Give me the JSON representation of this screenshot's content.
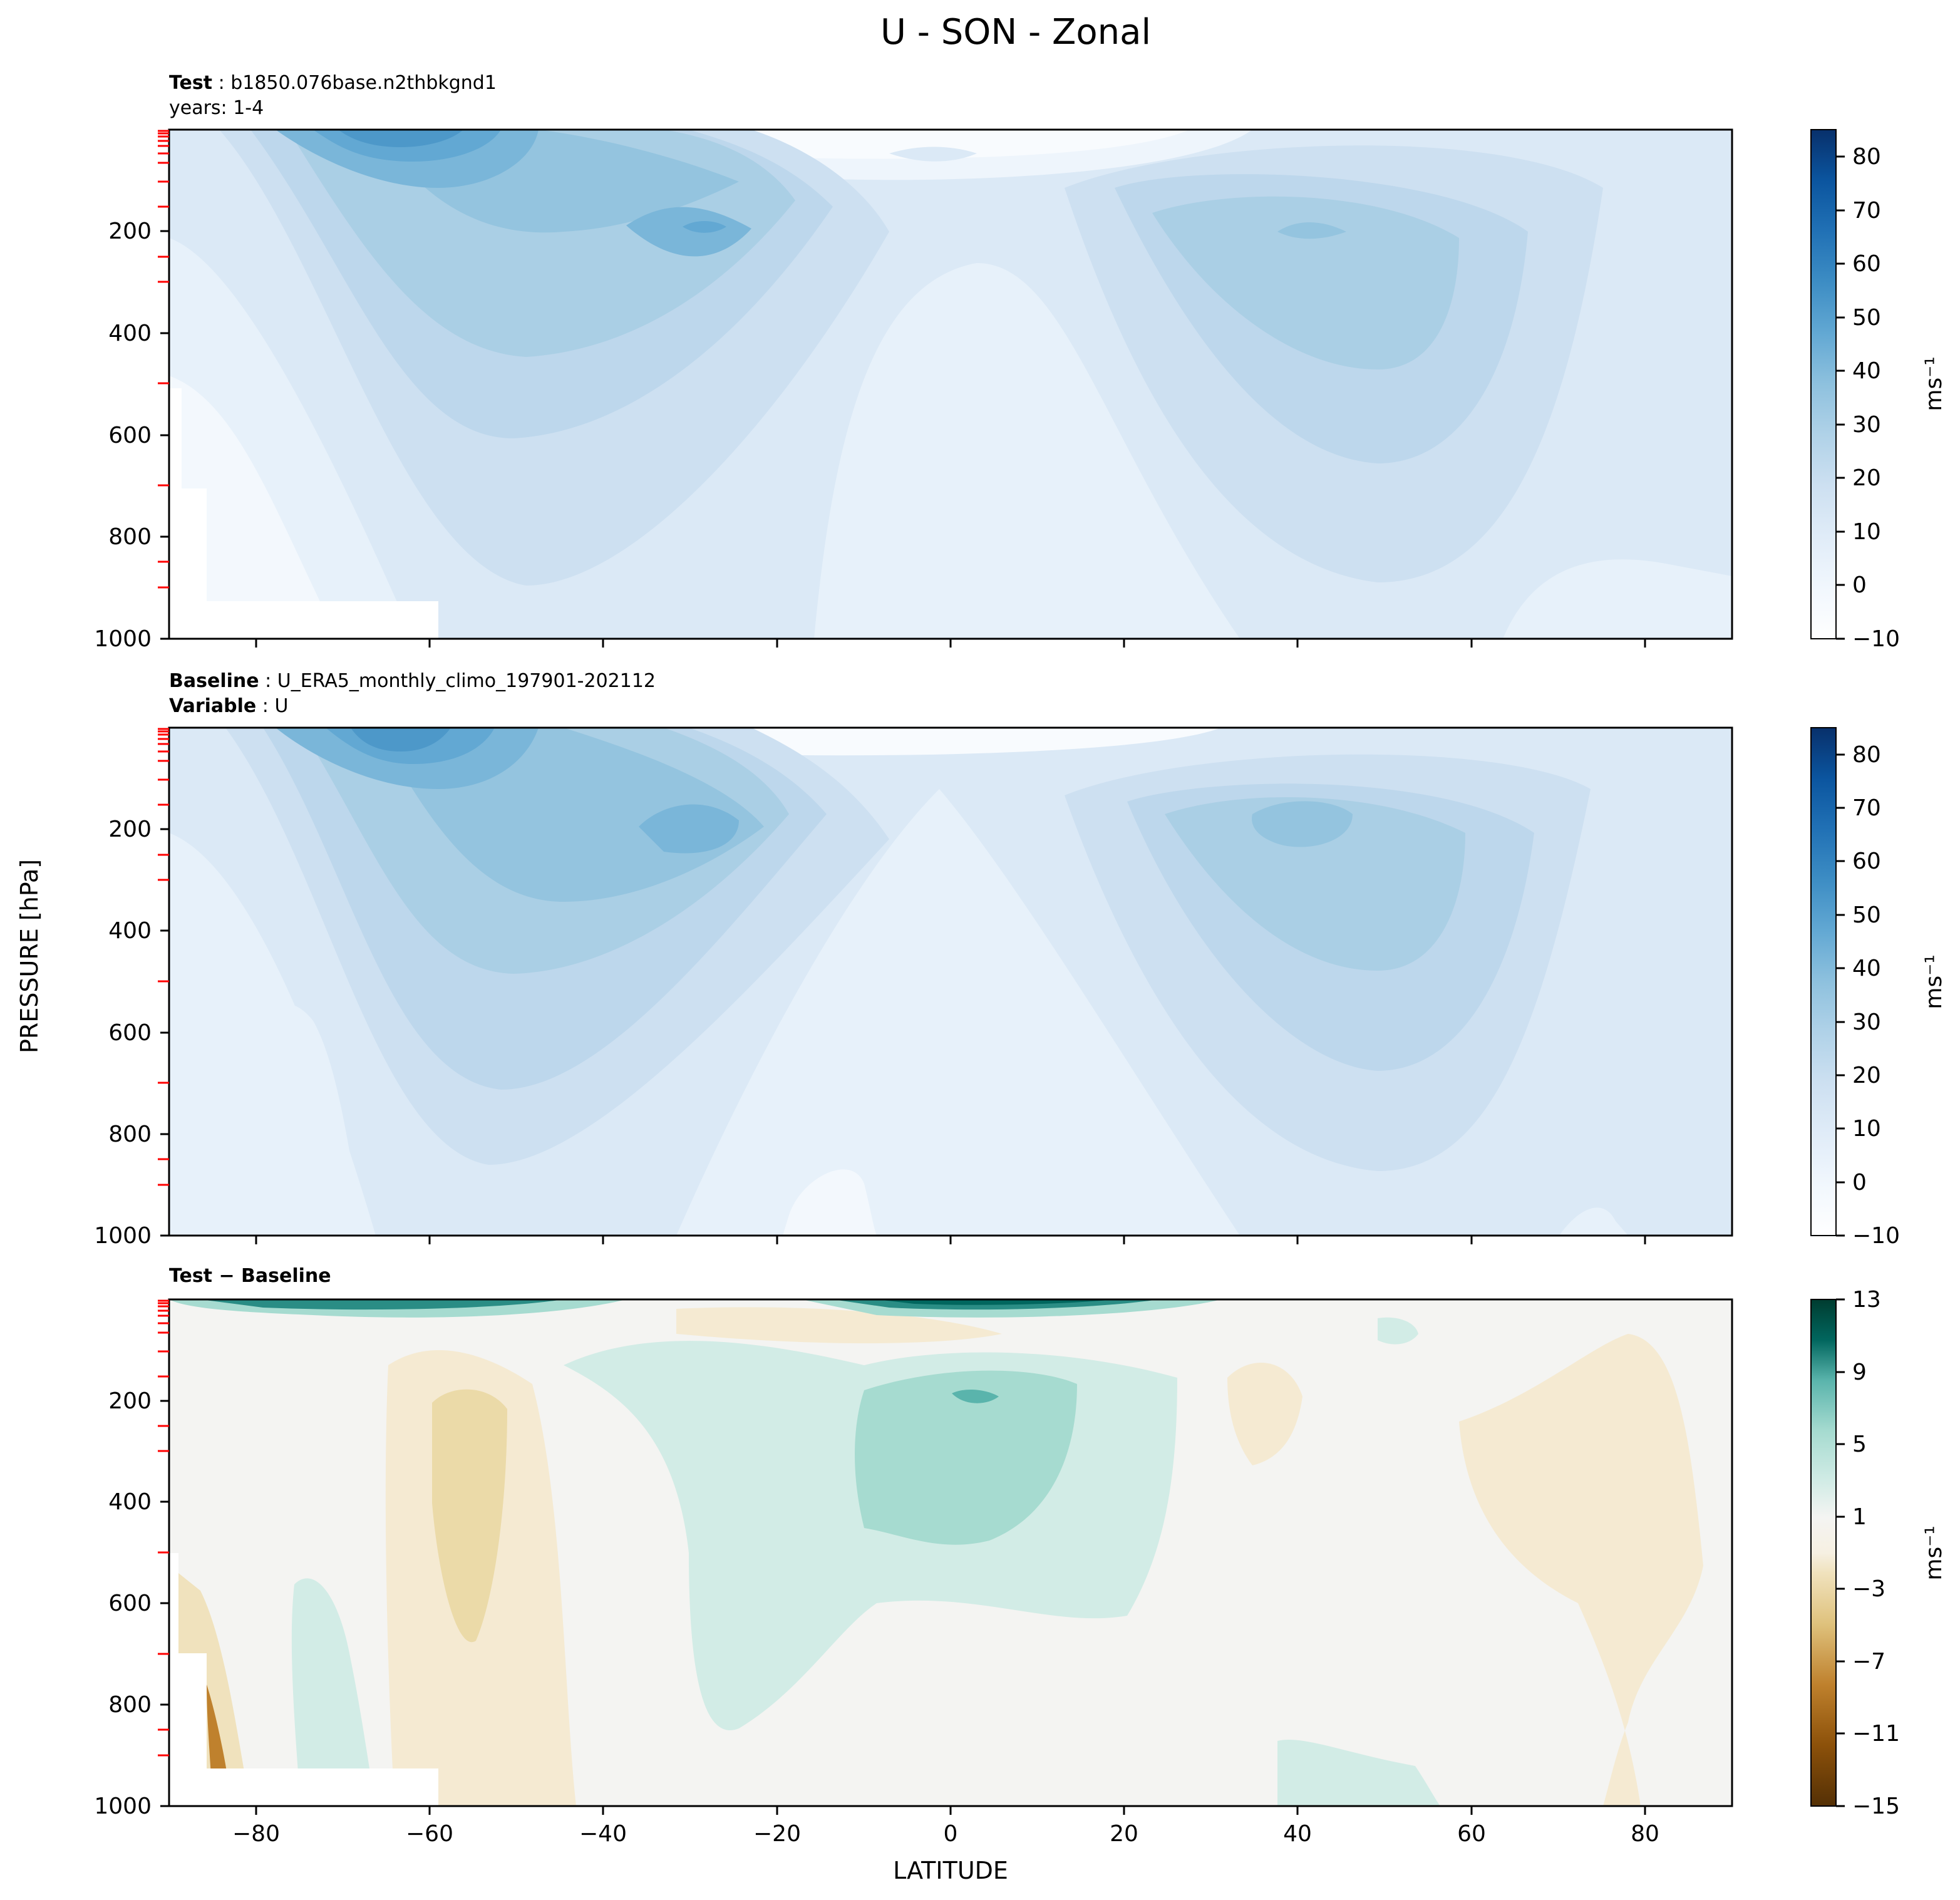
{
  "figure_title": "U - SON - Zonal",
  "shared": {
    "ylabel": "PRESSURE [hPa]",
    "xlabel": "LATITUDE",
    "xticks": [
      -80,
      -60,
      -40,
      -20,
      0,
      20,
      40,
      60,
      80
    ],
    "xlim": [
      -90,
      90
    ],
    "yticks": [
      200,
      400,
      600,
      800,
      1000
    ],
    "ylim": [
      1000,
      0
    ]
  },
  "panels": [
    {
      "id": "test",
      "title_bold": "Test",
      "title_value": "b1850.076base.n2thbkgnd1",
      "subtitle": "years: 1-4",
      "colorbar": {
        "ticks": [
          "80",
          "70",
          "60",
          "50",
          "40",
          "30",
          "20",
          "10",
          "0",
          "−10"
        ],
        "units": "ms⁻¹"
      }
    },
    {
      "id": "baseline",
      "title_bold": "Baseline",
      "title_value": "U_ERA5_monthly_climo_197901-202112",
      "subtitle_bold": "Variable",
      "subtitle_value": "U",
      "colorbar": {
        "ticks": [
          "80",
          "70",
          "60",
          "50",
          "40",
          "30",
          "20",
          "10",
          "0",
          "−10"
        ],
        "units": "ms⁻¹"
      }
    },
    {
      "id": "diff",
      "title_bold": "Test − Baseline",
      "colorbar": {
        "ticks": [
          "13",
          "9",
          "5",
          "1",
          "−3",
          "−7",
          "−11",
          "−15"
        ],
        "units": "ms⁻¹"
      }
    }
  ],
  "chart_data": [
    {
      "type": "heatmap",
      "title": "Test : b1850.076base.n2thbkgnd1",
      "subtitle": "years: 1-4",
      "xlabel": "LATITUDE",
      "ylabel": "PRESSURE [hPa]",
      "xlim": [
        -90,
        90
      ],
      "ylim": [
        1000,
        0
      ],
      "colorbar_range": [
        -10,
        85
      ],
      "contour_interval": 5,
      "jets": [
        {
          "lat": -60,
          "pressure": 10,
          "value": 55
        },
        {
          "lat": -30,
          "pressure": 200,
          "value": 42
        },
        {
          "lat": 42,
          "pressure": 200,
          "value": 37
        }
      ],
      "palette": [
        "#ffffff",
        "#f1f7fd",
        "#e3eef9",
        "#d9e8f5",
        "#cde0f1",
        "#bed8ec",
        "#aacfe5",
        "#94c4df",
        "#7ab6d9",
        "#62a8d3",
        "#4d98c9",
        "#3787c0",
        "#2372b6",
        "#1460a8",
        "#0a4d94",
        "#08306b"
      ]
    },
    {
      "type": "heatmap",
      "title": "Baseline : U_ERA5_monthly_climo_197901-202112",
      "subtitle": "Variable : U",
      "xlabel": "LATITUDE",
      "ylabel": "PRESSURE [hPa]",
      "xlim": [
        -90,
        90
      ],
      "ylim": [
        1000,
        0
      ],
      "colorbar_range": [
        -10,
        85
      ],
      "contour_interval": 5,
      "jets": [
        {
          "lat": -62,
          "pressure": 10,
          "value": 52
        },
        {
          "lat": -30,
          "pressure": 200,
          "value": 40
        },
        {
          "lat": 42,
          "pressure": 200,
          "value": 38
        }
      ]
    },
    {
      "type": "heatmap",
      "title": "Test − Baseline",
      "xlabel": "LATITUDE",
      "ylabel": "PRESSURE [hPa]",
      "xlim": [
        -90,
        90
      ],
      "ylim": [
        1000,
        0
      ],
      "colorbar_range": [
        -15,
        13
      ],
      "contour_interval": 2,
      "features": [
        {
          "lat": 3,
          "pressure": 200,
          "value": 7
        },
        {
          "lat": -55,
          "pressure": 350,
          "value": -3
        },
        {
          "lat": 10,
          "pressure": 5,
          "value": 13
        }
      ],
      "palette": [
        "#543005",
        "#8c510a",
        "#bf812d",
        "#dfc27d",
        "#ebdaa8",
        "#f5ead2",
        "#f4f4f2",
        "#d2ece6",
        "#a6dbd0",
        "#5ab4ac",
        "#2a8d85",
        "#01665e",
        "#003c30"
      ]
    }
  ]
}
